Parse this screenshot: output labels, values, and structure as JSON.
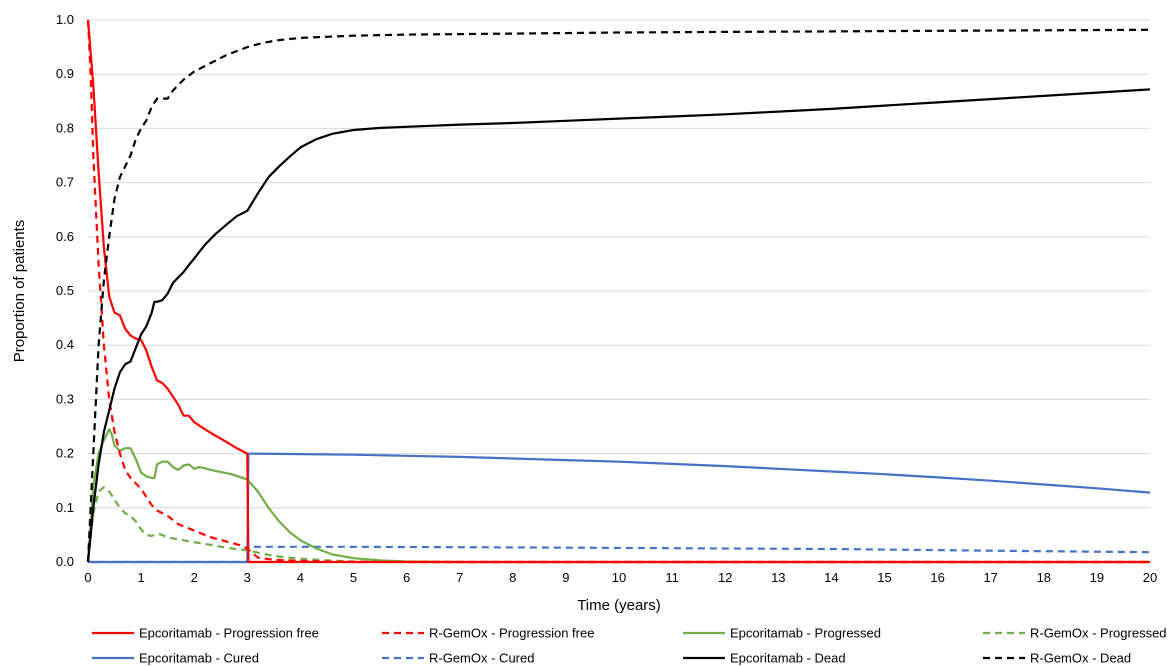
{
  "chart_data": {
    "type": "line",
    "title": "",
    "xlabel": "Time (years)",
    "ylabel": "Proportion of patients",
    "xlim": [
      0,
      20
    ],
    "ylim": [
      0,
      1.0
    ],
    "x_ticks": [
      "0",
      "1",
      "2",
      "3",
      "4",
      "5",
      "6",
      "7",
      "8",
      "9",
      "10",
      "11",
      "12",
      "13",
      "14",
      "15",
      "16",
      "17",
      "18",
      "19",
      "20"
    ],
    "y_ticks": [
      "0.0",
      "0.1",
      "0.2",
      "0.3",
      "0.4",
      "0.5",
      "0.6",
      "0.7",
      "0.8",
      "0.9",
      "1.0"
    ],
    "grid": "horizontal",
    "legend_position": "bottom",
    "series": [
      {
        "name": "Epcoritamab - Progression free",
        "color": "#ff0000",
        "dash": false,
        "points": [
          [
            0,
            1.0
          ],
          [
            0.1,
            0.88
          ],
          [
            0.2,
            0.72
          ],
          [
            0.3,
            0.58
          ],
          [
            0.4,
            0.49
          ],
          [
            0.5,
            0.46
          ],
          [
            0.6,
            0.455
          ],
          [
            0.7,
            0.43
          ],
          [
            0.8,
            0.418
          ],
          [
            0.9,
            0.412
          ],
          [
            1.0,
            0.41
          ],
          [
            1.1,
            0.39
          ],
          [
            1.2,
            0.36
          ],
          [
            1.3,
            0.335
          ],
          [
            1.4,
            0.33
          ],
          [
            1.5,
            0.32
          ],
          [
            1.6,
            0.305
          ],
          [
            1.7,
            0.29
          ],
          [
            1.8,
            0.27
          ],
          [
            1.9,
            0.27
          ],
          [
            2.0,
            0.258
          ],
          [
            2.2,
            0.245
          ],
          [
            2.4,
            0.233
          ],
          [
            2.6,
            0.222
          ],
          [
            2.8,
            0.21
          ],
          [
            3.0,
            0.2
          ],
          [
            3.02,
            0.0
          ],
          [
            20,
            0.0
          ]
        ]
      },
      {
        "name": "R-GemOx - Progression free",
        "color": "#ff0000",
        "dash": true,
        "points": [
          [
            0,
            1.0
          ],
          [
            0.05,
            0.9
          ],
          [
            0.1,
            0.75
          ],
          [
            0.2,
            0.55
          ],
          [
            0.3,
            0.4
          ],
          [
            0.4,
            0.3
          ],
          [
            0.5,
            0.24
          ],
          [
            0.6,
            0.2
          ],
          [
            0.7,
            0.17
          ],
          [
            0.8,
            0.155
          ],
          [
            0.9,
            0.145
          ],
          [
            1.0,
            0.135
          ],
          [
            1.1,
            0.12
          ],
          [
            1.2,
            0.105
          ],
          [
            1.3,
            0.095
          ],
          [
            1.5,
            0.085
          ],
          [
            1.7,
            0.07
          ],
          [
            2.0,
            0.058
          ],
          [
            2.3,
            0.046
          ],
          [
            2.6,
            0.038
          ],
          [
            2.9,
            0.03
          ],
          [
            3.0,
            0.025
          ],
          [
            3.2,
            0.008
          ],
          [
            3.5,
            0.004
          ],
          [
            4.0,
            0.002
          ],
          [
            5.0,
            0.0
          ],
          [
            20,
            0.0
          ]
        ]
      },
      {
        "name": "Epcoritamab - Progressed",
        "color": "#70ad47",
        "dash": false,
        "points": [
          [
            0,
            0.0
          ],
          [
            0.1,
            0.14
          ],
          [
            0.2,
            0.2
          ],
          [
            0.3,
            0.225
          ],
          [
            0.4,
            0.245
          ],
          [
            0.45,
            0.235
          ],
          [
            0.5,
            0.215
          ],
          [
            0.6,
            0.205
          ],
          [
            0.7,
            0.21
          ],
          [
            0.8,
            0.21
          ],
          [
            0.9,
            0.19
          ],
          [
            1.0,
            0.165
          ],
          [
            1.1,
            0.158
          ],
          [
            1.2,
            0.155
          ],
          [
            1.25,
            0.155
          ],
          [
            1.3,
            0.18
          ],
          [
            1.4,
            0.185
          ],
          [
            1.5,
            0.185
          ],
          [
            1.6,
            0.175
          ],
          [
            1.7,
            0.17
          ],
          [
            1.8,
            0.178
          ],
          [
            1.9,
            0.18
          ],
          [
            2.0,
            0.172
          ],
          [
            2.1,
            0.175
          ],
          [
            2.4,
            0.168
          ],
          [
            2.7,
            0.162
          ],
          [
            3.0,
            0.152
          ],
          [
            3.2,
            0.13
          ],
          [
            3.4,
            0.1
          ],
          [
            3.6,
            0.075
          ],
          [
            3.8,
            0.055
          ],
          [
            4.0,
            0.04
          ],
          [
            4.3,
            0.025
          ],
          [
            4.6,
            0.014
          ],
          [
            5.0,
            0.007
          ],
          [
            5.5,
            0.003
          ],
          [
            6.0,
            0.001
          ],
          [
            7.0,
            0.0
          ],
          [
            20,
            0.0
          ]
        ]
      },
      {
        "name": "R-GemOx - Progressed",
        "color": "#70ad47",
        "dash": true,
        "points": [
          [
            0,
            0.0
          ],
          [
            0.1,
            0.09
          ],
          [
            0.2,
            0.13
          ],
          [
            0.3,
            0.138
          ],
          [
            0.4,
            0.13
          ],
          [
            0.5,
            0.115
          ],
          [
            0.6,
            0.1
          ],
          [
            0.7,
            0.09
          ],
          [
            0.8,
            0.085
          ],
          [
            0.9,
            0.075
          ],
          [
            1.0,
            0.06
          ],
          [
            1.1,
            0.05
          ],
          [
            1.2,
            0.048
          ],
          [
            1.3,
            0.052
          ],
          [
            1.4,
            0.05
          ],
          [
            1.5,
            0.045
          ],
          [
            1.7,
            0.042
          ],
          [
            1.9,
            0.038
          ],
          [
            2.1,
            0.035
          ],
          [
            2.4,
            0.03
          ],
          [
            2.7,
            0.025
          ],
          [
            3.0,
            0.022
          ],
          [
            3.3,
            0.015
          ],
          [
            3.6,
            0.01
          ],
          [
            4.0,
            0.006
          ],
          [
            4.5,
            0.003
          ],
          [
            5.0,
            0.001
          ],
          [
            6.0,
            0.0
          ],
          [
            20,
            0.0
          ]
        ]
      },
      {
        "name": "Epcoritamab - Cured",
        "color": "#4472c4",
        "dash": false,
        "points": [
          [
            0,
            0.0
          ],
          [
            3.0,
            0.0
          ],
          [
            3.02,
            0.2
          ],
          [
            4,
            0.199
          ],
          [
            5,
            0.198
          ],
          [
            6,
            0.196
          ],
          [
            7,
            0.194
          ],
          [
            8,
            0.191
          ],
          [
            9,
            0.188
          ],
          [
            10,
            0.185
          ],
          [
            11,
            0.181
          ],
          [
            12,
            0.177
          ],
          [
            13,
            0.172
          ],
          [
            14,
            0.167
          ],
          [
            15,
            0.162
          ],
          [
            16,
            0.156
          ],
          [
            17,
            0.15
          ],
          [
            18,
            0.143
          ],
          [
            19,
            0.136
          ],
          [
            20,
            0.128
          ]
        ]
      },
      {
        "name": "R-GemOx - Cured",
        "color": "#4472c4",
        "dash": true,
        "points": [
          [
            0,
            0.0
          ],
          [
            3.0,
            0.0
          ],
          [
            3.02,
            0.028
          ],
          [
            5,
            0.028
          ],
          [
            8,
            0.027
          ],
          [
            10,
            0.026
          ],
          [
            12,
            0.025
          ],
          [
            14,
            0.024
          ],
          [
            16,
            0.022
          ],
          [
            18,
            0.02
          ],
          [
            20,
            0.018
          ]
        ]
      },
      {
        "name": "Epcoritamab - Dead",
        "color": "#000000",
        "dash": false,
        "points": [
          [
            0,
            0.0
          ],
          [
            0.1,
            0.1
          ],
          [
            0.2,
            0.18
          ],
          [
            0.3,
            0.24
          ],
          [
            0.4,
            0.28
          ],
          [
            0.5,
            0.32
          ],
          [
            0.6,
            0.35
          ],
          [
            0.7,
            0.365
          ],
          [
            0.8,
            0.37
          ],
          [
            0.9,
            0.395
          ],
          [
            1.0,
            0.42
          ],
          [
            1.1,
            0.435
          ],
          [
            1.2,
            0.46
          ],
          [
            1.25,
            0.48
          ],
          [
            1.3,
            0.48
          ],
          [
            1.4,
            0.483
          ],
          [
            1.5,
            0.495
          ],
          [
            1.6,
            0.515
          ],
          [
            1.7,
            0.525
          ],
          [
            1.8,
            0.535
          ],
          [
            1.9,
            0.548
          ],
          [
            2.0,
            0.56
          ],
          [
            2.2,
            0.585
          ],
          [
            2.4,
            0.605
          ],
          [
            2.6,
            0.622
          ],
          [
            2.8,
            0.638
          ],
          [
            3.0,
            0.648
          ],
          [
            3.2,
            0.68
          ],
          [
            3.4,
            0.71
          ],
          [
            3.6,
            0.73
          ],
          [
            3.8,
            0.748
          ],
          [
            4.0,
            0.765
          ],
          [
            4.3,
            0.78
          ],
          [
            4.6,
            0.79
          ],
          [
            5.0,
            0.797
          ],
          [
            5.5,
            0.801
          ],
          [
            6,
            0.803
          ],
          [
            7,
            0.807
          ],
          [
            8,
            0.81
          ],
          [
            9,
            0.814
          ],
          [
            10,
            0.818
          ],
          [
            11,
            0.822
          ],
          [
            12,
            0.826
          ],
          [
            13,
            0.831
          ],
          [
            14,
            0.836
          ],
          [
            15,
            0.842
          ],
          [
            16,
            0.848
          ],
          [
            17,
            0.854
          ],
          [
            18,
            0.86
          ],
          [
            19,
            0.866
          ],
          [
            20,
            0.872
          ]
        ]
      },
      {
        "name": "R-GemOx - Dead",
        "color": "#000000",
        "dash": true,
        "points": [
          [
            0,
            0.0
          ],
          [
            0.1,
            0.2
          ],
          [
            0.2,
            0.4
          ],
          [
            0.3,
            0.52
          ],
          [
            0.4,
            0.6
          ],
          [
            0.5,
            0.67
          ],
          [
            0.6,
            0.71
          ],
          [
            0.7,
            0.73
          ],
          [
            0.8,
            0.75
          ],
          [
            0.9,
            0.78
          ],
          [
            1.0,
            0.8
          ],
          [
            1.1,
            0.815
          ],
          [
            1.2,
            0.84
          ],
          [
            1.3,
            0.855
          ],
          [
            1.5,
            0.855
          ],
          [
            1.6,
            0.87
          ],
          [
            1.8,
            0.89
          ],
          [
            2.0,
            0.905
          ],
          [
            2.3,
            0.92
          ],
          [
            2.6,
            0.935
          ],
          [
            3.0,
            0.95
          ],
          [
            3.3,
            0.958
          ],
          [
            3.6,
            0.963
          ],
          [
            4.0,
            0.967
          ],
          [
            5,
            0.971
          ],
          [
            6,
            0.973
          ],
          [
            8,
            0.975
          ],
          [
            10,
            0.977
          ],
          [
            12,
            0.978
          ],
          [
            14,
            0.979
          ],
          [
            16,
            0.98
          ],
          [
            18,
            0.981
          ],
          [
            20,
            0.982
          ]
        ]
      }
    ]
  }
}
